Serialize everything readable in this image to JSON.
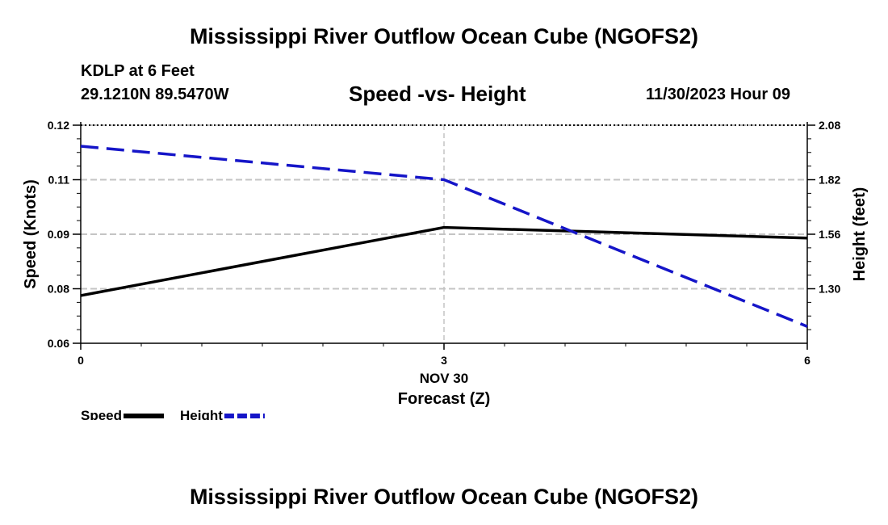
{
  "page": {
    "title": "Mississippi River Outflow Ocean Cube (NGOFS2)",
    "footer_title": "Mississippi River Outflow Ocean Cube (NGOFS2)",
    "station": "KDLP at 6 Feet",
    "coords": "29.1210N  89.5470W",
    "subtitle": "Speed -vs- Height",
    "datetime": "11/30/2023 Hour 09"
  },
  "chart_data": {
    "type": "line",
    "title": "Speed -vs- Height",
    "x": [
      0,
      3,
      6
    ],
    "x_tick_labels": [
      "0",
      "3",
      "6"
    ],
    "x_category_label": "NOV 30",
    "xlabel": "Forecast (Z)",
    "xlim": [
      0,
      6
    ],
    "grid": true,
    "left_axis": {
      "label": "Speed (Knots)",
      "ticks": [
        0.06,
        0.08,
        0.09,
        0.11,
        0.12
      ],
      "tick_labels": [
        "0.06",
        "0.08",
        "0.09",
        "0.11",
        "0.12"
      ]
    },
    "right_axis": {
      "label": "Height (feet)",
      "ticks": [
        1.3,
        1.56,
        1.82,
        2.08
      ],
      "tick_labels": [
        "1.30",
        "1.56",
        "1.82",
        "2.08"
      ]
    },
    "series": [
      {
        "name": "Speed",
        "axis": "left",
        "color": "#000000",
        "dash": "solid",
        "values": [
          0.0775,
          0.0925,
          0.0893
        ]
      },
      {
        "name": "Height",
        "axis": "right",
        "color": "#1515c8",
        "dash": "dashed",
        "values": [
          1.98,
          1.82,
          1.12
        ]
      }
    ],
    "legend": {
      "position": "bottom-left",
      "items": [
        "Speed",
        "Height"
      ]
    }
  }
}
